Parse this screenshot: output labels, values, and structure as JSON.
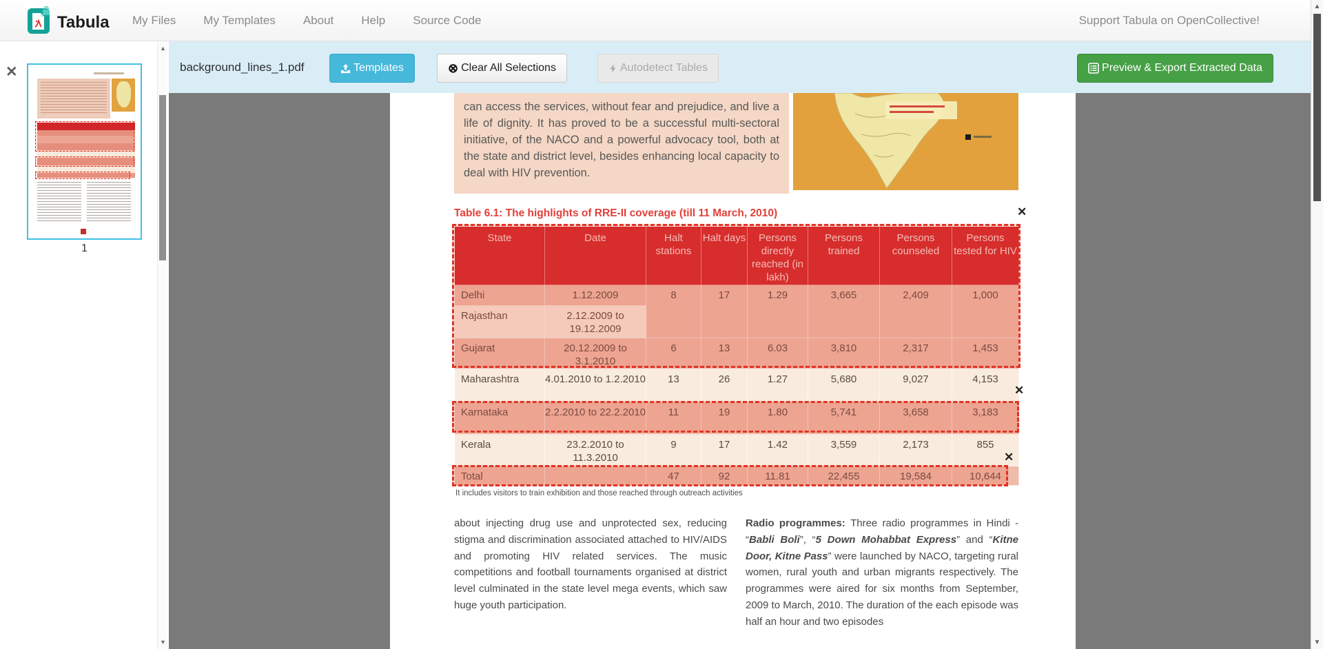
{
  "navbar": {
    "brand": "Tabula",
    "links": [
      "My Files",
      "My Templates",
      "About",
      "Help",
      "Source Code"
    ],
    "support": "Support Tabula on OpenCollective!"
  },
  "toolbar": {
    "filename": "background_lines_1.pdf",
    "templates_label": "Templates",
    "clear_label": "Clear All Selections",
    "autodetect_label": "Autodetect Tables",
    "export_label": "Preview & Export Extracted Data"
  },
  "sidebar": {
    "page_number": "1"
  },
  "icons": {
    "close": "✕",
    "clear_circle_x": "⊗",
    "up_arrow": "▲",
    "down_arrow": "▼"
  },
  "colors": {
    "accent_cyan": "#46b8da",
    "accent_green": "#46a046",
    "selection_red": "#e03325",
    "table_header_red": "#d2232a",
    "toolbar_blue": "#d9edf7"
  },
  "document": {
    "intro_text": "can access the services, without fear and prejudice, and live a life of dignity. It has proved to be a successful multi-sectoral initiative, of the NACO and a powerful advocacy tool, both at the state and district level, besides enhancing local capacity to deal with HIV prevention.",
    "table_title": "Table 6.1: The highlights of RRE-II coverage (till 11 March, 2010)",
    "table": {
      "headers": [
        "State",
        "Date",
        "Halt stations",
        "Halt days",
        "Persons directly reached (in lakh)",
        "Persons trained",
        "Persons counseled",
        "Persons tested for HIV"
      ],
      "rows": [
        [
          "Delhi",
          "1.12.2009",
          "8",
          "17",
          "1.29",
          "3,665",
          "2,409",
          "1,000"
        ],
        [
          "Rajasthan",
          "2.12.2009 to 19.12.2009",
          "",
          "",
          "",
          "",
          "",
          ""
        ],
        [
          "Gujarat",
          "20.12.2009 to 3.1.2010",
          "6",
          "13",
          "6.03",
          "3,810",
          "2,317",
          "1,453"
        ],
        [
          "Maharashtra",
          "4.01.2010 to 1.2.2010",
          "13",
          "26",
          "1.27",
          "5,680",
          "9,027",
          "4,153"
        ],
        [
          "Karnataka",
          "2.2.2010 to 22.2.2010",
          "11",
          "19",
          "1.80",
          "5,741",
          "3,658",
          "3,183"
        ],
        [
          "Kerala",
          "23.2.2010 to 11.3.2010",
          "9",
          "17",
          "1.42",
          "3,559",
          "2,173",
          "855"
        ],
        [
          "Total",
          "",
          "47",
          "92",
          "11.81",
          "22,455",
          "19,584",
          "10,644"
        ]
      ]
    },
    "footnote": "It includes visitors to train exhibition and those reached through outreach activities",
    "left_column": "about injecting drug use and unprotected sex, reducing stigma and discrimination associated attached to HIV/AIDS and promoting HIV related services. The music competitions and football tournaments organised at district level culminated in the state level mega events, which saw huge youth participation.",
    "right_column_segments": [
      {
        "text": "Radio programmes: ",
        "style": "b"
      },
      {
        "text": "Three radio programmes in Hindi - “",
        "style": ""
      },
      {
        "text": "Babli Boli",
        "style": "bi"
      },
      {
        "text": "”, “",
        "style": ""
      },
      {
        "text": "5 Down Mohabbat Express",
        "style": "bi"
      },
      {
        "text": "” and “",
        "style": ""
      },
      {
        "text": "Kitne Door, Kitne Pass",
        "style": "bi"
      },
      {
        "text": "” were launched by NACO, targeting rural women, rural youth and urban migrants respectively. The programmes were aired for six months from September, 2009 to March, 2010. The duration of the each episode was half an hour and two episodes",
        "style": ""
      }
    ]
  }
}
